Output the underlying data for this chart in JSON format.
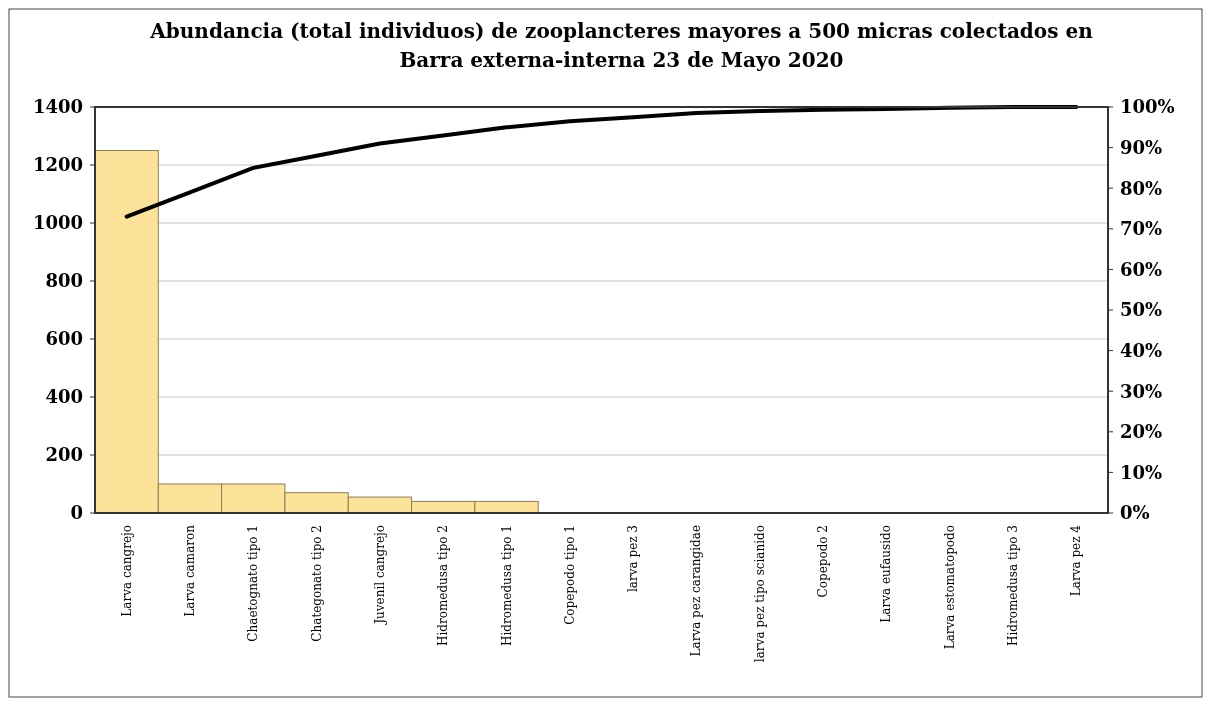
{
  "chart_data": {
    "type": "bar",
    "title": "Abundancia (total individuos) de zooplancteres mayores a 500 micras colectados en\nBarra externa-interna 23 de Mayo 2020",
    "categories": [
      "Larva cangrejo",
      "Larva camaron",
      "Chaetognato tipo 1",
      "Chategonato tipo 2",
      "Juvenil cangrejo",
      "Hidromedusa tipo 2",
      "Hidromedusa tipo 1",
      "Copepodo tipo 1",
      "larva pez 3",
      "Larva pez carangidae",
      "larva pez tipo scianido",
      "Copepodo 2",
      "Larva eufausido",
      "Larva estomatopodo",
      "Hidromedusa tipo 3",
      "Larva pez 4"
    ],
    "series": [
      {
        "color": "#fde29a",
        "values": [
          1250,
          100,
          100,
          70,
          55,
          40,
          40,
          0,
          0,
          0,
          0,
          0,
          0,
          0,
          0,
          0
        ]
      },
      {
        "type": "line",
        "axis": "y2",
        "color": "#000000",
        "values": [
          73,
          79,
          85,
          88,
          91,
          93,
          95,
          96.5,
          97.5,
          98.5,
          99,
          99.3,
          99.5,
          99.8,
          100,
          100
        ]
      }
    ],
    "ylim": [
      0,
      1400
    ],
    "yticks": [
      0,
      200,
      400,
      600,
      800,
      1000,
      1200,
      1400
    ],
    "y2lim": [
      0,
      100
    ],
    "y2ticks": [
      {
        "value": 0,
        "label": "0%"
      },
      {
        "value": 10,
        "label": "10%"
      },
      {
        "value": 20,
        "label": "20%"
      },
      {
        "value": 30,
        "label": "30%"
      },
      {
        "value": 40,
        "label": "40%"
      },
      {
        "value": 50,
        "label": "50%"
      },
      {
        "value": 60,
        "label": "60%"
      },
      {
        "value": 70,
        "label": "70%"
      },
      {
        "value": 80,
        "label": "80%"
      },
      {
        "value": 90,
        "label": "90%"
      },
      {
        "value": 100,
        "label": "100%"
      }
    ],
    "grid": "y",
    "marker": "none",
    "line_style": "solid"
  }
}
